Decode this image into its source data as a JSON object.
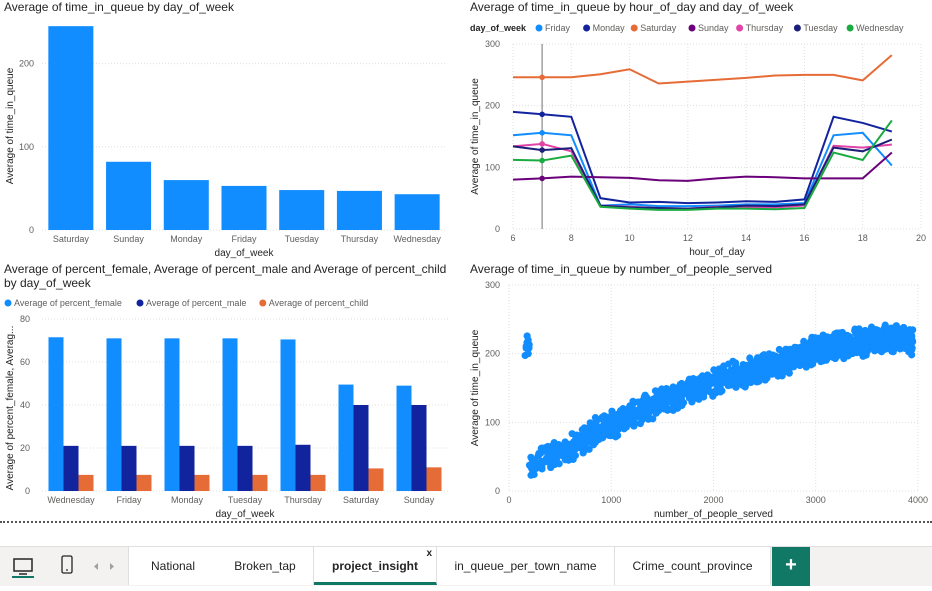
{
  "colors": {
    "Saturday": "#e66c37",
    "Sunday": "#6b007b",
    "Monday": "#12239e",
    "Friday": "#118dff",
    "Tuesday": "#1c1f7a",
    "Thursday": "#e044a7",
    "Wednesday": "#1aab40",
    "female": "#118dff",
    "male": "#12239e",
    "child": "#e66c37",
    "accent": "#117865"
  },
  "visuals": {
    "v1": {
      "title": "Average of time_in_queue by day_of_week",
      "chart_data": {
        "type": "bar",
        "title": "Average of time_in_queue by day_of_week",
        "xlabel": "day_of_week",
        "ylabel": "Average of time_in_queue",
        "categories": [
          "Saturday",
          "Sunday",
          "Monday",
          "Friday",
          "Tuesday",
          "Thursday",
          "Wednesday"
        ],
        "values": [
          245,
          82,
          60,
          53,
          48,
          47,
          43
        ],
        "ylim": [
          0,
          250
        ],
        "yticks": [
          0,
          100,
          200
        ],
        "grid": true
      }
    },
    "v2": {
      "title": "Average of time_in_queue by hour_of_day and day_of_week",
      "chart_data": {
        "type": "line",
        "title": "Average of time_in_queue by hour_of_day and day_of_week",
        "xlabel": "hour_of_day",
        "ylabel": "Average of time_in_queue",
        "legend_title": "day_of_week",
        "legend_position": "top-left",
        "xlim": [
          6,
          20
        ],
        "ylim": [
          0,
          300
        ],
        "xticks": [
          6,
          8,
          10,
          12,
          14,
          16,
          18,
          20
        ],
        "yticks": [
          0,
          100,
          200,
          300
        ],
        "grid": true,
        "x": [
          6,
          7,
          8,
          9,
          10,
          11,
          12,
          13,
          14,
          15,
          16,
          17,
          18,
          19
        ],
        "series": [
          {
            "name": "Friday",
            "values": [
              152,
              156,
              152,
              38,
              40,
              37,
              37,
              38,
              40,
              40,
              42,
              152,
              156,
              103
            ]
          },
          {
            "name": "Monday",
            "values": [
              190,
              186,
              182,
              50,
              43,
              44,
              42,
              43,
              45,
              44,
              48,
              182,
              172,
              158
            ]
          },
          {
            "name": "Saturday",
            "values": [
              246,
              246,
              246,
              251,
              259,
              236,
              239,
              242,
              245,
              249,
              250,
              250,
              241,
              282
            ]
          },
          {
            "name": "Sunday",
            "values": [
              80,
              82,
              85,
              84,
              83,
              79,
              78,
              82,
              85,
              84,
              82,
              82,
              82,
              124
            ]
          },
          {
            "name": "Thursday",
            "values": [
              134,
              138,
              126,
              38,
              36,
              34,
              33,
              36,
              35,
              35,
              38,
              135,
              132,
              137
            ]
          },
          {
            "name": "Tuesday",
            "values": [
              134,
              128,
              131,
              38,
              35,
              34,
              33,
              35,
              38,
              37,
              40,
              132,
              126,
              145
            ]
          },
          {
            "name": "Wednesday",
            "values": [
              112,
              111,
              119,
              36,
              33,
              31,
              31,
              33,
              33,
              32,
              34,
              124,
              112,
              176
            ]
          }
        ],
        "annotations": [
          "reference line at hour_of_day 7"
        ]
      }
    },
    "v3": {
      "title": "Average of percent_female, Average of percent_male and Average of percent_child by day_of_week",
      "chart_data": {
        "type": "bar",
        "title": "Average of percent_female, Average of percent_male and Average of percent_child by day_of_week",
        "xlabel": "day_of_week",
        "ylabel": "Average of percent_female, Averag...",
        "legend_position": "top-left",
        "categories": [
          "Wednesday",
          "Friday",
          "Monday",
          "Tuesday",
          "Thursday",
          "Saturday",
          "Sunday"
        ],
        "series": [
          {
            "name": "Average of percent_female",
            "values": [
              71.5,
              71,
              71,
              71,
              70.5,
              49.5,
              49
            ]
          },
          {
            "name": "Average of percent_male",
            "values": [
              21,
              21,
              21,
              21,
              21.5,
              40,
              40
            ]
          },
          {
            "name": "Average of percent_child",
            "values": [
              7.5,
              7.5,
              7.5,
              7.5,
              7.5,
              10.5,
              11
            ]
          }
        ],
        "ylim": [
          0,
          80
        ],
        "yticks": [
          0,
          20,
          40,
          60,
          80
        ],
        "grid": true
      }
    },
    "v4": {
      "title": "Average of time_in_queue by number_of_people_served",
      "chart_data": {
        "type": "scatter",
        "title": "Average of time_in_queue by number_of_people_served",
        "xlabel": "number_of_people_served",
        "ylabel": "Average of time_in_queue",
        "xlim": [
          0,
          4000
        ],
        "ylim": [
          0,
          300
        ],
        "xticks": [
          0,
          1000,
          2000,
          3000,
          4000
        ],
        "yticks": [
          0,
          100,
          200,
          300
        ],
        "grid": true,
        "x_range": [
          150,
          3950
        ],
        "trend_points": [
          [
            200,
            35
          ],
          [
            400,
            52
          ],
          [
            600,
            63
          ],
          [
            800,
            82
          ],
          [
            1000,
            97
          ],
          [
            1200,
            110
          ],
          [
            1400,
            125
          ],
          [
            1600,
            137
          ],
          [
            1800,
            148
          ],
          [
            2000,
            158
          ],
          [
            2200,
            168
          ],
          [
            2400,
            176
          ],
          [
            2600,
            183
          ],
          [
            2800,
            195
          ],
          [
            3000,
            205
          ],
          [
            3200,
            212
          ],
          [
            3400,
            216
          ],
          [
            3600,
            220
          ],
          [
            3800,
            222
          ],
          [
            3950,
            218
          ]
        ],
        "spread": 14,
        "point_count": 1400
      }
    }
  },
  "tabs": {
    "items": [
      {
        "label": "National"
      },
      {
        "label": "Broken_tap"
      },
      {
        "label": "project_insight"
      },
      {
        "label": "in_queue_per_town_name"
      },
      {
        "label": "Crime_count_province"
      }
    ],
    "active_index": 2,
    "close_label": "x",
    "add_label": "+"
  },
  "icons": {
    "desktop": "desktop-icon",
    "mobile": "mobile-icon",
    "prev": "chevron-left-icon",
    "next": "chevron-right-icon"
  }
}
